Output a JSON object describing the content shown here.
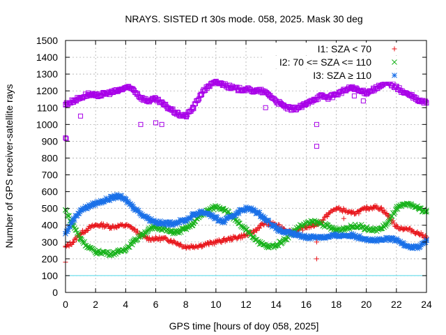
{
  "chart_data": {
    "type": "scatter",
    "title": "NRAYS. SISTED rt 30s mode. 058, 2025. Mask 30 deg",
    "xlabel": "GPS time [hours of doy 058, 2025]",
    "ylabel": "Number of GPS receiver-satellite rays",
    "xlim": [
      0,
      24
    ],
    "ylim": [
      0,
      1500
    ],
    "x_ticks": [
      "0",
      "2",
      "4",
      "6",
      "8",
      "10",
      "12",
      "14",
      "16",
      "18",
      "20",
      "22",
      "24"
    ],
    "y_ticks": [
      "0",
      "100",
      "200",
      "300",
      "400",
      "500",
      "600",
      "700",
      "800",
      "900",
      "1000",
      "1100",
      "1200",
      "1300",
      "1400",
      "1500"
    ],
    "grid": true,
    "legend_position": "top-right",
    "reference_line": {
      "y": 100,
      "color": "#4fd7e8"
    },
    "series": [
      {
        "name": "I1: SZA < 70",
        "marker": "plus",
        "color": "#e8141a",
        "x": [
          0,
          0.5,
          1,
          1.5,
          2,
          2.5,
          3,
          3.5,
          4,
          4.5,
          5,
          5.5,
          6,
          6.5,
          7,
          7.5,
          8,
          8.5,
          9,
          9.5,
          10,
          10.5,
          11,
          11.5,
          12,
          12.5,
          13,
          13.5,
          14,
          14.5,
          15,
          15.5,
          16,
          16.5,
          17,
          17.5,
          18,
          18.5,
          19,
          19.5,
          20,
          20.5,
          21,
          21.5,
          22,
          22.5,
          23,
          23.5,
          24
        ],
        "y": [
          270,
          300,
          350,
          380,
          400,
          400,
          390,
          395,
          400,
          380,
          340,
          320,
          320,
          320,
          310,
          290,
          270,
          275,
          280,
          290,
          300,
          310,
          320,
          330,
          340,
          360,
          400,
          420,
          400,
          380,
          360,
          370,
          390,
          400,
          420,
          470,
          500,
          490,
          470,
          480,
          500,
          510,
          500,
          450,
          390,
          380,
          370,
          350,
          330
        ]
      },
      {
        "name": "I2: 70 <= SZA <= 110",
        "marker": "cross",
        "color": "#17b21a",
        "x": [
          0,
          0.5,
          1,
          1.5,
          2,
          2.5,
          3,
          3.5,
          4,
          4.5,
          5,
          5.5,
          6,
          6.5,
          7,
          7.5,
          8,
          8.5,
          9,
          9.5,
          10,
          10.5,
          11,
          11.5,
          12,
          12.5,
          13,
          13.5,
          14,
          14.5,
          15,
          15.5,
          16,
          16.5,
          17,
          17.5,
          18,
          18.5,
          19,
          19.5,
          20,
          20.5,
          21,
          21.5,
          22,
          22.5,
          23,
          23.5,
          24
        ],
        "y": [
          490,
          400,
          320,
          270,
          240,
          240,
          230,
          240,
          260,
          300,
          340,
          370,
          390,
          380,
          360,
          360,
          380,
          410,
          460,
          490,
          510,
          500,
          460,
          410,
          370,
          330,
          290,
          270,
          280,
          310,
          350,
          390,
          410,
          420,
          410,
          390,
          370,
          380,
          390,
          400,
          380,
          370,
          380,
          420,
          500,
          520,
          520,
          500,
          480
        ]
      },
      {
        "name": "I3: SZA ≥ 110",
        "marker": "star",
        "color": "#1a70e8",
        "x": [
          0,
          0.5,
          1,
          1.5,
          2,
          2.5,
          3,
          3.5,
          4,
          4.5,
          5,
          5.5,
          6,
          6.5,
          7,
          7.5,
          8,
          8.5,
          9,
          9.5,
          10,
          10.5,
          11,
          11.5,
          12,
          12.5,
          13,
          13.5,
          14,
          14.5,
          15,
          15.5,
          16,
          16.5,
          17,
          17.5,
          18,
          18.5,
          19,
          19.5,
          20,
          20.5,
          21,
          21.5,
          22,
          22.5,
          23,
          23.5,
          24
        ],
        "y": [
          350,
          430,
          490,
          510,
          530,
          545,
          560,
          575,
          550,
          510,
          470,
          440,
          420,
          410,
          410,
          420,
          430,
          460,
          480,
          470,
          440,
          420,
          450,
          480,
          500,
          490,
          460,
          420,
          380,
          360,
          350,
          340,
          330,
          330,
          330,
          330,
          340,
          340,
          340,
          330,
          320,
          310,
          310,
          320,
          310,
          290,
          270,
          270,
          310
        ]
      },
      {
        "name": "",
        "marker": "square",
        "color": "#a800e8",
        "x": [
          0,
          0.5,
          1,
          1.5,
          2,
          2.5,
          3,
          3.5,
          4,
          4.5,
          5,
          5.5,
          6,
          6.5,
          7,
          7.5,
          8,
          8.5,
          9,
          9.5,
          10,
          10.5,
          11,
          11.5,
          12,
          12.5,
          13,
          13.5,
          14,
          14.5,
          15,
          15.5,
          16,
          16.5,
          17,
          17.5,
          18,
          18.5,
          19,
          19.5,
          20,
          20.5,
          21,
          21.5,
          22,
          22.5,
          23,
          23.5,
          24
        ],
        "y": [
          1120,
          1140,
          1160,
          1180,
          1170,
          1180,
          1190,
          1200,
          1220,
          1210,
          1160,
          1140,
          1150,
          1120,
          1090,
          1060,
          1050,
          1100,
          1180,
          1230,
          1250,
          1240,
          1220,
          1210,
          1210,
          1200,
          1200,
          1180,
          1140,
          1110,
          1090,
          1100,
          1120,
          1150,
          1170,
          1160,
          1180,
          1200,
          1220,
          1200,
          1190,
          1210,
          1230,
          1250,
          1220,
          1190,
          1170,
          1140,
          1130
        ]
      }
    ],
    "outliers": [
      {
        "series": 3,
        "points": [
          [
            0,
            920
          ],
          [
            0.05,
            915
          ],
          [
            1,
            1050
          ],
          [
            5,
            1000
          ],
          [
            6,
            1010
          ],
          [
            6.4,
            1000
          ],
          [
            13.3,
            1100
          ],
          [
            16.7,
            870
          ],
          [
            16.7,
            1000
          ],
          [
            19.2,
            1170
          ],
          [
            19.8,
            1140
          ]
        ]
      },
      {
        "series": 0,
        "points": [
          [
            0,
            180
          ],
          [
            13.5,
            400
          ],
          [
            16.7,
            200
          ],
          [
            16.7,
            300
          ],
          [
            18.5,
            440
          ]
        ]
      }
    ]
  }
}
